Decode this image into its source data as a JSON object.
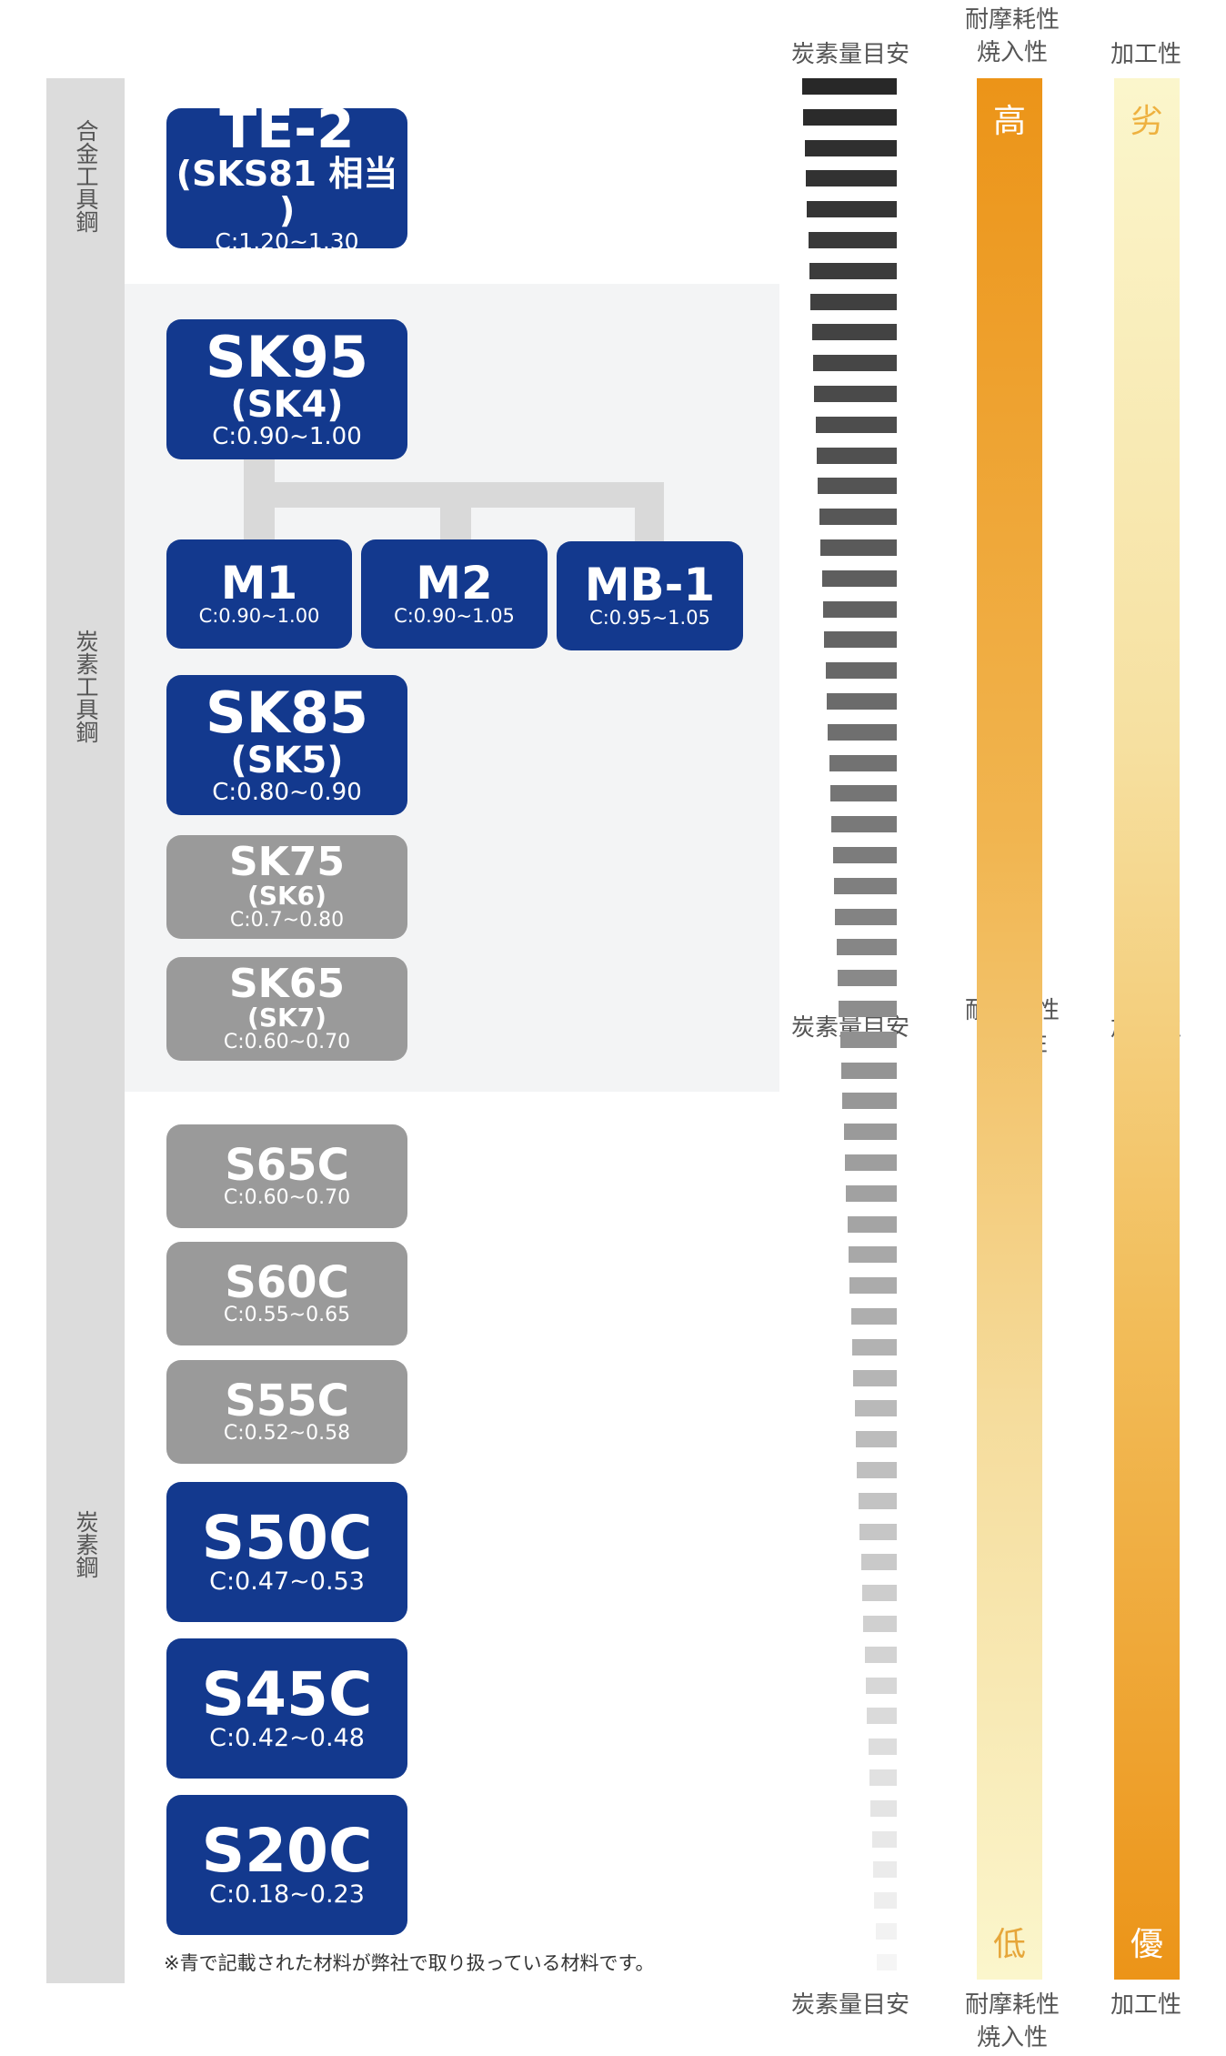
{
  "categories": {
    "alloy_tool_steel": "合金工具鋼",
    "carbon_tool_steel": "炭素工具鋼",
    "carbon_steel": "炭素鋼"
  },
  "materials": {
    "te2": {
      "name": "TE-2",
      "equiv": "(SKS81 相当 )",
      "carbon": "C:1.20~1.30",
      "handled": true
    },
    "sk95": {
      "name": "SK95",
      "equiv": "(SK4)",
      "carbon": "C:0.90~1.00",
      "handled": true
    },
    "m1": {
      "name": "M1",
      "carbon": "C:0.90~1.00",
      "handled": true
    },
    "m2": {
      "name": "M2",
      "carbon": "C:0.90~1.05",
      "handled": true
    },
    "mb1": {
      "name": "MB-1",
      "carbon": "C:0.95~1.05",
      "handled": true
    },
    "sk85": {
      "name": "SK85",
      "equiv": "(SK5)",
      "carbon": "C:0.80~0.90",
      "handled": true
    },
    "sk75": {
      "name": "SK75",
      "equiv": "(SK6)",
      "carbon": "C:0.7~0.80",
      "handled": false
    },
    "sk65": {
      "name": "SK65",
      "equiv": "(SK7)",
      "carbon": "C:0.60~0.70",
      "handled": false
    },
    "s65c": {
      "name": "S65C",
      "carbon": "C:0.60~0.70",
      "handled": false
    },
    "s60c": {
      "name": "S60C",
      "carbon": "C:0.55~0.65",
      "handled": false
    },
    "s55c": {
      "name": "S55C",
      "carbon": "C:0.52~0.58",
      "handled": false
    },
    "s50c": {
      "name": "S50C",
      "carbon": "C:0.47~0.53",
      "handled": true
    },
    "s45c": {
      "name": "S45C",
      "carbon": "C:0.42~0.48",
      "handled": true
    },
    "s20c": {
      "name": "S20C",
      "carbon": "C:0.18~0.23",
      "handled": true
    }
  },
  "headers": {
    "carbon_guide": "炭素量目安",
    "wear_resistance_line1": "耐摩耗性",
    "wear_resistance_line2": "焼入性",
    "machinability": "加工性"
  },
  "scales": {
    "wear_top": "高",
    "wear_bottom": "低",
    "machinability_top": "劣",
    "machinability_bottom": "優"
  },
  "note": "※青で記載された材料が弊社で取り扱っている材料です。",
  "colors": {
    "handled_blue": "#13398e",
    "not_handled_gray": "#9a9a9a",
    "orange": "#ec9418",
    "pale_yellow": "#fbf6cc"
  }
}
